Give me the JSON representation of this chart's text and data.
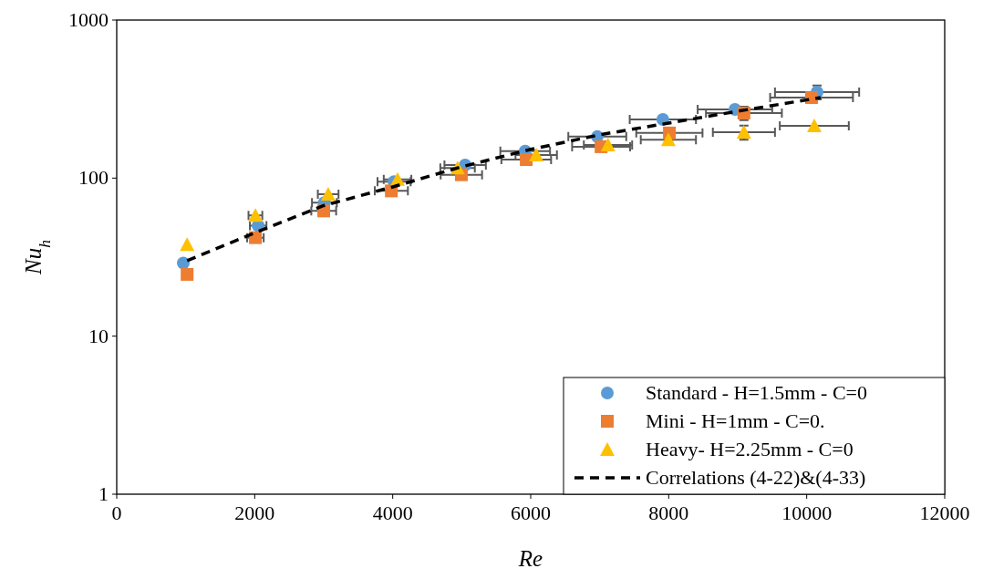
{
  "chart_data": {
    "type": "scatter",
    "xlabel": "Re",
    "ylabel": "Nu$_{h}$",
    "log": "y",
    "xlim": [
      0,
      12000
    ],
    "xticks": [
      0,
      2000,
      4000,
      6000,
      8000,
      10000,
      12000
    ],
    "ylim": [
      1,
      1000
    ],
    "yticks": [
      1,
      10,
      100,
      1000
    ],
    "grid": false,
    "legend": "bottom right",
    "series": [
      {
        "name": "Standard - H=1.5mm - C=0",
        "color": "#5b9bd5",
        "marker": "circle",
        "x": [
          965,
          2050,
          3010,
          4020,
          5050,
          5920,
          6965,
          7915,
          8960,
          10150
        ],
        "values": [
          29,
          50,
          70,
          95,
          121,
          148,
          183,
          235,
          272,
          350
        ],
        "xerrors": [
          null,
          120,
          180,
          240,
          300,
          360,
          420,
          480,
          540,
          610
        ],
        "errors": [
          null,
          null,
          null,
          null,
          null,
          null,
          null,
          null,
          null,
          35
        ]
      },
      {
        "name": "Mini - H=1mm - C=0.",
        "color": "#ed7d31",
        "marker": "square",
        "x": [
          1020,
          2010,
          3000,
          3980,
          4995,
          5935,
          7020,
          8010,
          9090,
          10070
        ],
        "values": [
          24.6,
          42,
          62,
          83,
          105,
          131,
          158,
          193,
          258,
          323
        ],
        "xerrors": [
          null,
          120,
          180,
          240,
          300,
          360,
          420,
          480,
          550,
          600
        ],
        "errors": [
          null,
          null,
          null,
          null,
          null,
          null,
          null,
          null,
          25,
          null
        ]
      },
      {
        "name": "Heavy- H=2.25mm - C=0",
        "color": "#ffc000",
        "marker": "triangle",
        "x": [
          1020,
          2010,
          3065,
          4070,
          4940,
          6080,
          7120,
          7995,
          9090,
          10110
        ],
        "values": [
          38,
          58,
          79,
          98,
          116,
          140,
          162,
          175,
          195,
          214
        ],
        "xerrors": [
          null,
          100,
          150,
          200,
          250,
          300,
          350,
          400,
          450,
          500
        ],
        "errors": [
          null,
          null,
          null,
          null,
          null,
          null,
          null,
          null,
          20,
          null
        ]
      },
      {
        "name": "Correlations (4-22)&(4-33)",
        "color": "#000000",
        "type": "line",
        "line_style": "dashed",
        "x": [
          1020,
          2050,
          3000,
          4000,
          5000,
          6000,
          7000,
          8000,
          9000,
          10200
        ],
        "values": [
          30,
          46,
          67,
          88,
          118,
          152,
          188,
          223,
          265,
          323
        ]
      }
    ]
  }
}
